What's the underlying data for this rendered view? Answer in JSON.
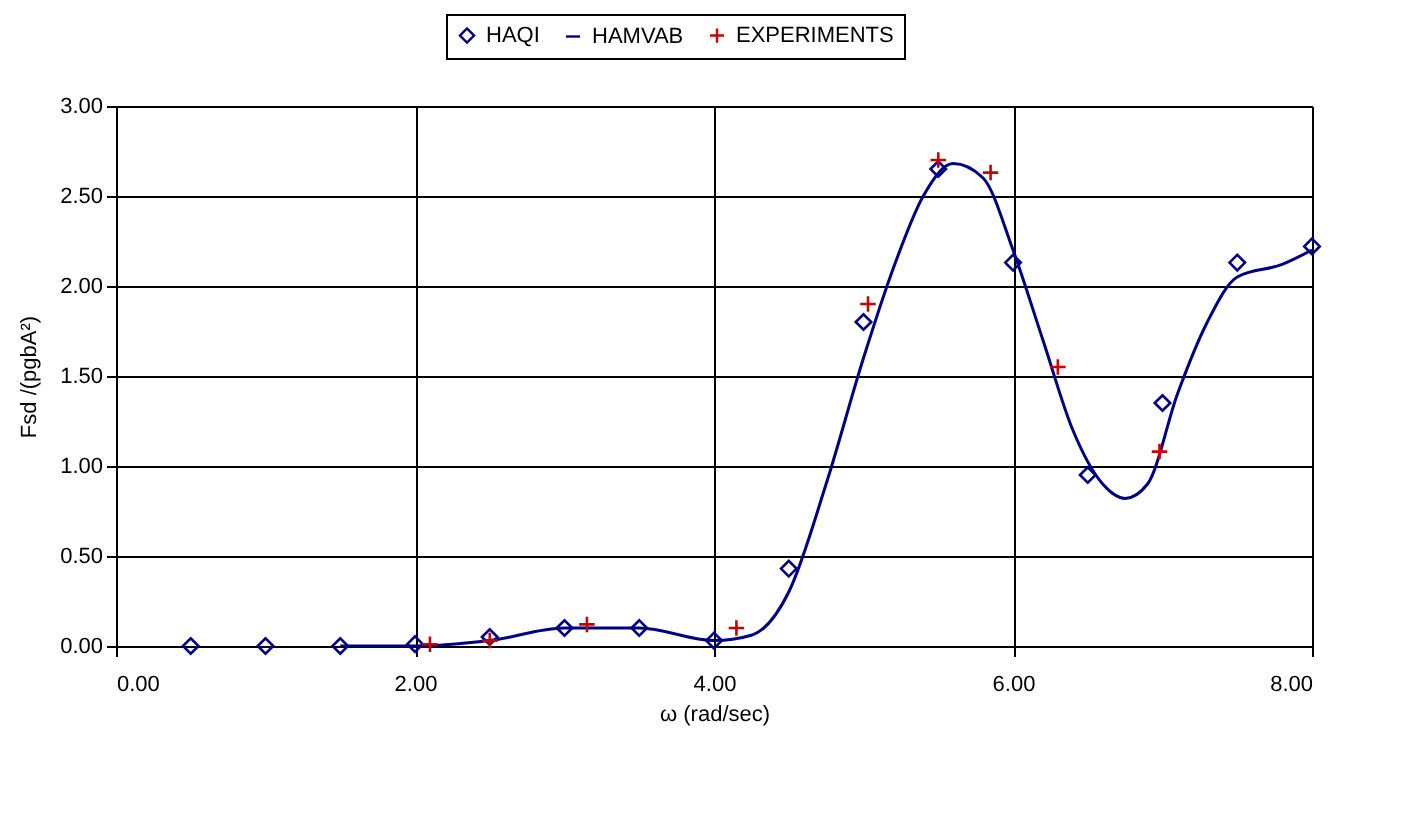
{
  "chart_data": {
    "type": "scatter",
    "xlabel": "ω (rad/sec)",
    "ylabel": "Fsd /(pgbA²)",
    "xlim": [
      0,
      8
    ],
    "xticks": [
      {
        "value": 0,
        "label": "0.00"
      },
      {
        "value": 2,
        "label": "2.00"
      },
      {
        "value": 4,
        "label": "4.00"
      },
      {
        "value": 6,
        "label": "6.00"
      },
      {
        "value": 8,
        "label": "8.00"
      }
    ],
    "ylim": [
      0,
      3
    ],
    "yticks": [
      {
        "value": 0,
        "label": "0.00"
      },
      {
        "value": 0.5,
        "label": "0.50"
      },
      {
        "value": 1,
        "label": "1.00"
      },
      {
        "value": 1.5,
        "label": "1.50"
      },
      {
        "value": 2,
        "label": "2.00"
      },
      {
        "value": 2.5,
        "label": "2.50"
      },
      {
        "value": 3,
        "label": "3.00"
      }
    ],
    "grid": true,
    "legend": "top",
    "series": [
      {
        "name": "HAQI",
        "marker": "diamond",
        "color": "#000080",
        "x": [
          0.5,
          1,
          1.5,
          2,
          2.5,
          3,
          3.5,
          4,
          4.5,
          5,
          5.5,
          6,
          6.5,
          7,
          7.5,
          8
        ],
        "values": [
          0,
          0,
          0,
          0.01,
          0.05,
          0.1,
          0.1,
          0.03,
          0.43,
          1.8,
          2.65,
          2.13,
          0.95,
          1.35,
          2.13,
          2.22
        ]
      },
      {
        "name": "HAMVAB",
        "type": "line",
        "marker": "none",
        "color": "#000080",
        "x": [
          1.5,
          2,
          2.5,
          3,
          3.5,
          4,
          4.25,
          4.5,
          4.75,
          5,
          5.2,
          5.4,
          5.6,
          5.8,
          6,
          6.2,
          6.4,
          6.6,
          6.75,
          6.9,
          7.1,
          7.3,
          7.5,
          7.8,
          8
        ],
        "values": [
          0,
          0,
          0.03,
          0.1,
          0.1,
          0.03,
          0.06,
          0.3,
          0.9,
          1.6,
          2.1,
          2.5,
          2.68,
          2.6,
          2.2,
          1.7,
          1.2,
          0.9,
          0.82,
          0.9,
          1.4,
          1.8,
          2.05,
          2.12,
          2.2
        ]
      },
      {
        "name": "EXPERIMENTS",
        "marker": "cross",
        "color": "#cc0000",
        "x": [
          2.1,
          2.5,
          3.15,
          4.15,
          5.03,
          5.5,
          5.85,
          6.3,
          6.98
        ],
        "values": [
          0.01,
          0.03,
          0.12,
          0.1,
          1.9,
          2.7,
          2.63,
          1.55,
          1.08
        ]
      }
    ]
  }
}
